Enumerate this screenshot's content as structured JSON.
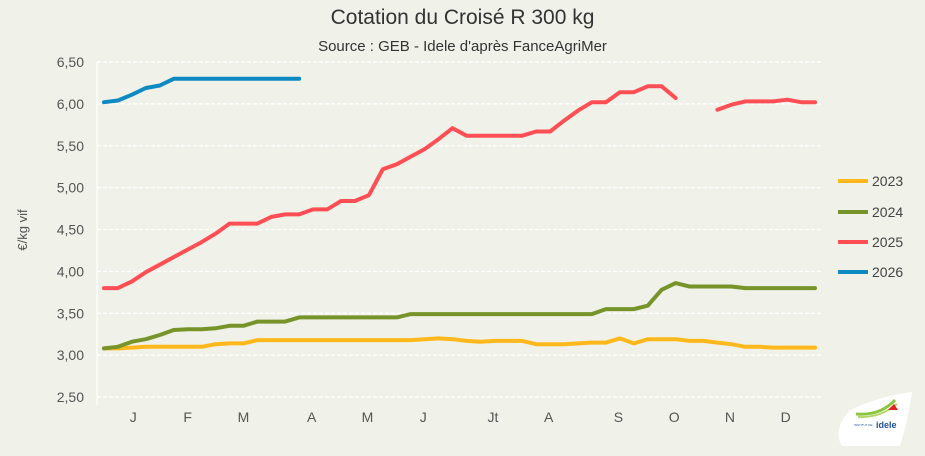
{
  "chart_data": {
    "type": "line",
    "title": "Cotation du Croisé R 300 kg",
    "subtitle": "Source : GEB - Idele d'après FanceAgriMer",
    "xlabel": "",
    "ylabel": "€/kg vif",
    "ylim": [
      2.5,
      6.5
    ],
    "yticks": [
      "2,50",
      "3,00",
      "3,50",
      "4,00",
      "4,50",
      "5,00",
      "5,50",
      "6,00",
      "6,50"
    ],
    "ytick_values": [
      2.5,
      3.0,
      3.5,
      4.0,
      4.5,
      5.0,
      5.5,
      6.0,
      6.5
    ],
    "x_unit": "week",
    "x_count": 52,
    "month_labels": [
      "J",
      "F",
      "M",
      "A",
      "M",
      "J",
      "Jt",
      "A",
      "S",
      "O",
      "N",
      "D"
    ],
    "month_label_week": [
      2.1,
      6.0,
      10.0,
      14.9,
      18.9,
      22.9,
      27.9,
      31.9,
      36.9,
      40.9,
      44.9,
      48.9
    ],
    "grid": true,
    "legend_placement": "right",
    "series": [
      {
        "name": "2023",
        "color": "#ffb81c",
        "values": [
          3.08,
          3.08,
          3.09,
          3.1,
          3.1,
          3.1,
          3.1,
          3.1,
          3.13,
          3.14,
          3.14,
          3.18,
          3.18,
          3.18,
          3.18,
          3.18,
          3.18,
          3.18,
          3.18,
          3.18,
          3.18,
          3.18,
          3.18,
          3.19,
          3.2,
          3.19,
          3.17,
          3.16,
          3.17,
          3.17,
          3.17,
          3.13,
          3.13,
          3.13,
          3.14,
          3.15,
          3.15,
          3.2,
          3.14,
          3.19,
          3.19,
          3.19,
          3.17,
          3.17,
          3.15,
          3.13,
          3.1,
          3.1,
          3.09,
          3.09,
          3.09,
          3.09
        ]
      },
      {
        "name": "2024",
        "color": "#76942a",
        "values": [
          3.08,
          3.1,
          3.16,
          3.19,
          3.24,
          3.3,
          3.31,
          3.31,
          3.32,
          3.35,
          3.35,
          3.4,
          3.4,
          3.4,
          3.45,
          3.45,
          3.45,
          3.45,
          3.45,
          3.45,
          3.45,
          3.45,
          3.49,
          3.49,
          3.49,
          3.49,
          3.49,
          3.49,
          3.49,
          3.49,
          3.49,
          3.49,
          3.49,
          3.49,
          3.49,
          3.49,
          3.55,
          3.55,
          3.55,
          3.59,
          3.78,
          3.86,
          3.82,
          3.82,
          3.82,
          3.82,
          3.8,
          3.8,
          3.8,
          3.8,
          3.8,
          3.8
        ]
      },
      {
        "name": "2025",
        "color": "#ff4f55",
        "values": [
          3.8,
          3.8,
          3.88,
          3.99,
          4.08,
          4.17,
          4.26,
          4.35,
          4.45,
          4.57,
          4.57,
          4.57,
          4.65,
          4.68,
          4.68,
          4.74,
          4.74,
          4.84,
          4.84,
          4.91,
          5.22,
          5.28,
          5.37,
          5.46,
          5.58,
          5.71,
          5.62,
          5.62,
          5.62,
          5.62,
          5.62,
          5.67,
          5.67,
          5.8,
          5.92,
          6.02,
          6.02,
          6.14,
          6.14,
          6.21,
          6.21,
          6.07,
          null,
          null,
          5.93,
          5.99,
          6.03,
          6.03,
          6.03,
          6.05,
          6.02,
          6.02
        ]
      },
      {
        "name": "2026",
        "color": "#0d8ac2",
        "values": [
          6.02,
          6.04,
          6.11,
          6.19,
          6.22,
          6.3,
          6.3,
          6.3,
          6.3,
          6.3,
          6.3,
          6.3,
          6.3,
          6.3,
          6.3
        ]
      }
    ]
  },
  "logo": {
    "text": "INSTITUT DE L'ÉLEVAGE idele"
  }
}
